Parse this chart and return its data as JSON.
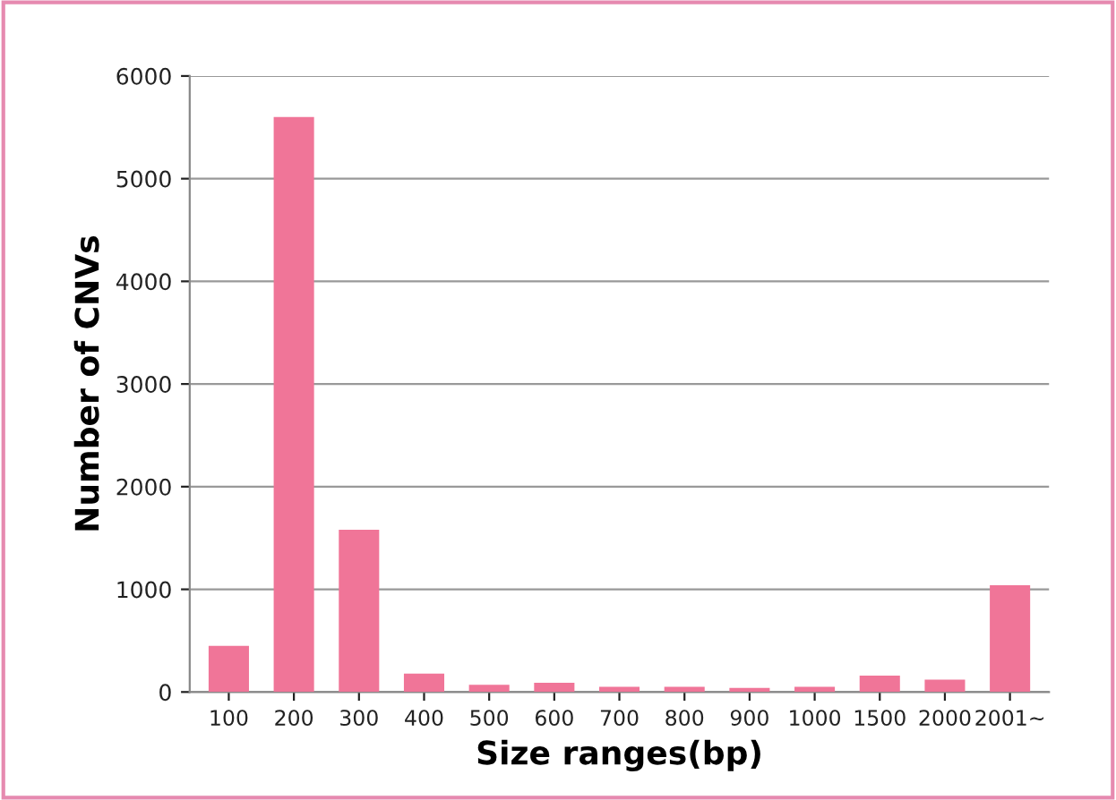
{
  "chart_data": {
    "type": "bar",
    "xlabel": "Size ranges(bp)",
    "ylabel": "Number of CNVs",
    "categories": [
      "100",
      "200",
      "300",
      "400",
      "500",
      "600",
      "700",
      "800",
      "900",
      "1000",
      "1500",
      "2000",
      "2001~"
    ],
    "values": [
      450,
      5600,
      1580,
      180,
      70,
      90,
      50,
      50,
      40,
      50,
      160,
      120,
      1040
    ],
    "color": "#f07598",
    "ylim": [
      0,
      6000
    ],
    "yticks": [
      0,
      1000,
      2000,
      3000,
      4000,
      5000,
      6000
    ],
    "grid": "y"
  }
}
